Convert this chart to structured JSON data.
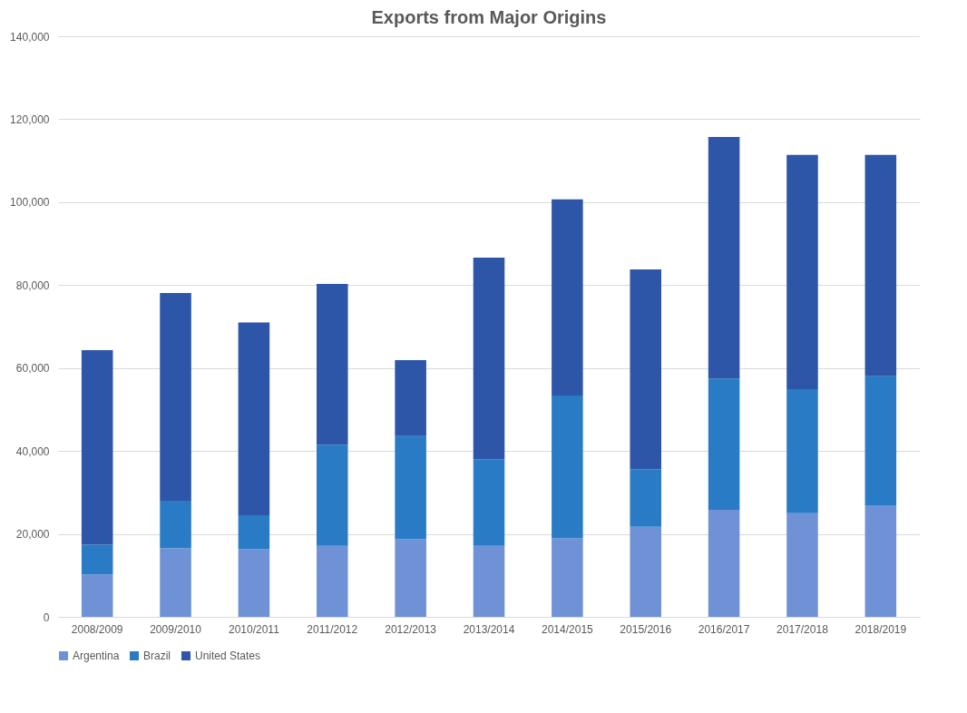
{
  "chart_data": {
    "type": "bar",
    "title": "Exports from Major Origins",
    "stacked": true,
    "categories": [
      "2008/2009",
      "2009/2010",
      "2010/2011",
      "2011/2012",
      "2012/2013",
      "2013/2014",
      "2014/2015",
      "2015/2016",
      "2016/2017",
      "2017/2018",
      "2018/2019"
    ],
    "series": [
      {
        "name": "Argentina",
        "color": "#6f92d6",
        "values": [
          10200,
          16500,
          16300,
          17100,
          18700,
          17100,
          18900,
          21700,
          25800,
          25000,
          26900
        ]
      },
      {
        "name": "Brazil",
        "color": "#2a7bc6",
        "values": [
          7200,
          11500,
          8200,
          24400,
          24900,
          20900,
          34500,
          13900,
          31700,
          29900,
          31100
        ]
      },
      {
        "name": "United States",
        "color": "#2d56a8",
        "values": [
          46900,
          50100,
          46500,
          38800,
          18300,
          48600,
          47300,
          48200,
          58200,
          56500,
          53400
        ]
      }
    ],
    "ylim": [
      0,
      140000
    ],
    "yticks": [
      0,
      {
        "value": 20000,
        "label": "20,000"
      },
      {
        "value": 40000,
        "label": "40,000"
      },
      {
        "value": 60000,
        "label": "60,000"
      },
      {
        "value": 80000,
        "label": "80,000"
      },
      {
        "value": 100000,
        "label": "100,000"
      },
      {
        "value": 120000,
        "label": "120,000"
      },
      {
        "value": 140000,
        "label": "140,000"
      }
    ],
    "grid": "y",
    "legend": "bottom"
  }
}
